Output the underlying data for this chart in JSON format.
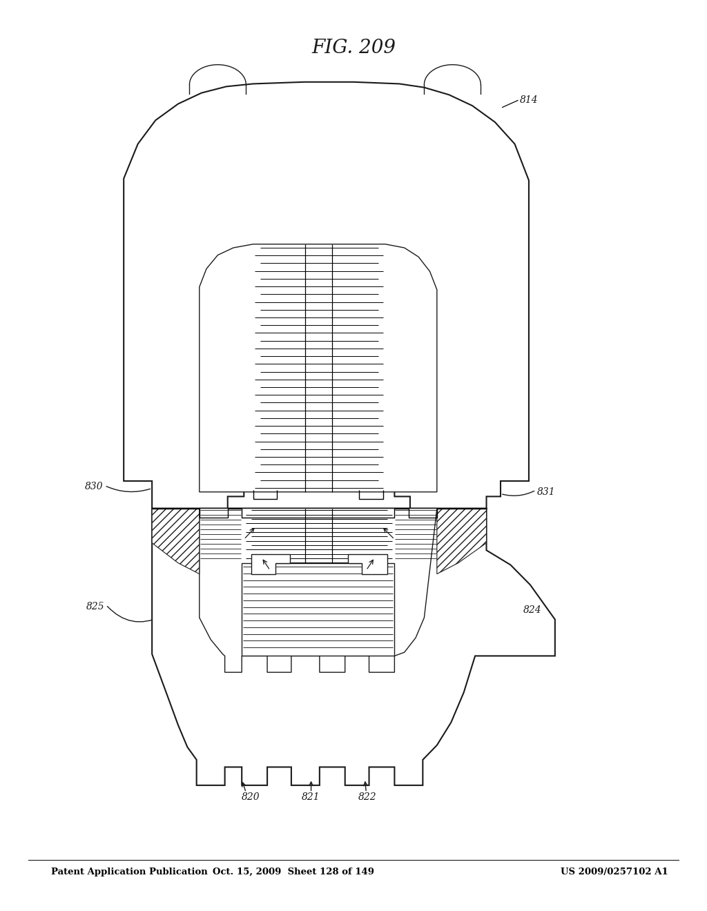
{
  "title_left": "Patent Application Publication",
  "title_mid": "Oct. 15, 2009  Sheet 128 of 149",
  "title_right": "US 2009/0257102 A1",
  "fig_label": "FIG. 209",
  "bg_color": "#ffffff",
  "line_color": "#1a1a1a"
}
